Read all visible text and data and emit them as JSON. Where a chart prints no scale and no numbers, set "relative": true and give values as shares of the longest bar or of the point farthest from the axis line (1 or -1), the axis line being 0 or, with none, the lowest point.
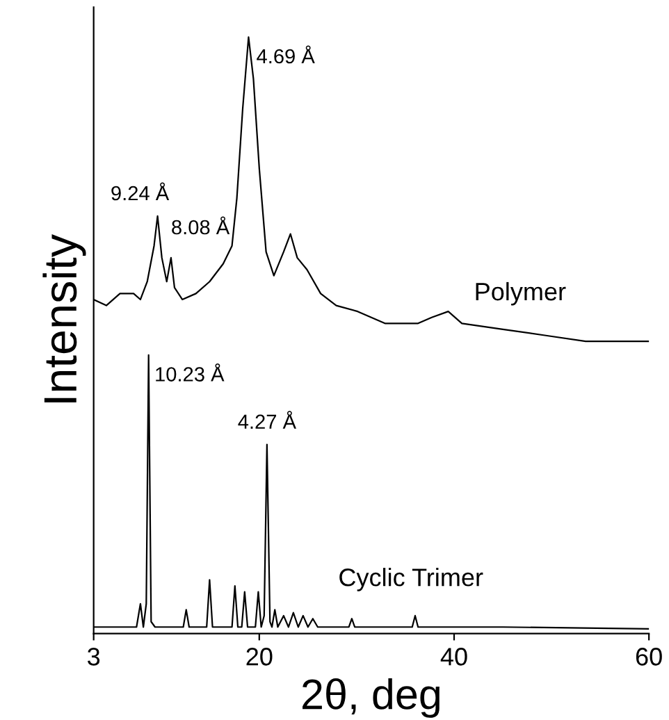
{
  "chart_data": {
    "type": "line",
    "relative": true,
    "xlabel": "2θ, deg",
    "ylabel": "Intensity",
    "xlim": [
      3,
      60
    ],
    "xticks": [
      3,
      20,
      40,
      60
    ],
    "grid": false,
    "legend": false,
    "marker": "none",
    "line_style": "solid",
    "series": [
      {
        "name": "Polymer",
        "color": "#000000",
        "x": [
          3,
          4.3,
          5.7,
          7.1,
          7.8,
          8.5,
          9.2,
          9.56,
          10.0,
          10.5,
          10.94,
          11.3,
          12.1,
          13.5,
          14.9,
          16.3,
          17.2,
          17.7,
          18.3,
          18.9,
          19.4,
          20.0,
          20.7,
          21.5,
          22.5,
          23.2,
          23.9,
          24.9,
          26.3,
          27.9,
          30.1,
          32.9,
          36.3,
          37.7,
          39.4,
          40.8,
          45.0,
          49.3,
          53.5,
          60
        ],
        "values": [
          0.56,
          0.55,
          0.57,
          0.57,
          0.56,
          0.59,
          0.65,
          0.7,
          0.63,
          0.59,
          0.63,
          0.58,
          0.56,
          0.57,
          0.59,
          0.62,
          0.65,
          0.73,
          0.88,
          1.0,
          0.93,
          0.78,
          0.64,
          0.6,
          0.64,
          0.67,
          0.63,
          0.61,
          0.57,
          0.55,
          0.54,
          0.52,
          0.52,
          0.53,
          0.54,
          0.52,
          0.51,
          0.5,
          0.49,
          0.49
        ]
      },
      {
        "name": "Cyclic Trimer",
        "color": "#000000",
        "x": [
          3,
          7.4,
          7.8,
          8.1,
          8.4,
          8.64,
          8.9,
          9.3,
          12.2,
          12.5,
          12.8,
          14.6,
          14.9,
          15.2,
          17.2,
          17.5,
          17.8,
          18.2,
          18.5,
          18.8,
          19.6,
          19.9,
          20.2,
          20.5,
          20.79,
          21.1,
          21.3,
          21.6,
          21.9,
          22.5,
          23.0,
          23.5,
          24.0,
          24.5,
          25.0,
          25.5,
          26.0,
          27.5,
          29.2,
          29.5,
          29.8,
          35.7,
          36.0,
          36.3,
          45,
          60
        ],
        "values": [
          0.011,
          0.011,
          0.05,
          0.011,
          0.05,
          0.467,
          0.02,
          0.011,
          0.011,
          0.04,
          0.011,
          0.011,
          0.09,
          0.011,
          0.011,
          0.08,
          0.011,
          0.011,
          0.07,
          0.011,
          0.011,
          0.07,
          0.011,
          0.03,
          0.317,
          0.02,
          0.011,
          0.04,
          0.011,
          0.03,
          0.011,
          0.035,
          0.011,
          0.03,
          0.011,
          0.025,
          0.011,
          0.011,
          0.011,
          0.025,
          0.011,
          0.011,
          0.03,
          0.011,
          0.011,
          0.008
        ]
      }
    ],
    "annotations": [
      {
        "text": "4.69 Å",
        "x": 18.9,
        "y": 1.0
      },
      {
        "text": "9.24 Å",
        "x": 9.56,
        "y": 0.7
      },
      {
        "text": "8.08 Å",
        "x": 10.94,
        "y": 0.63
      },
      {
        "text": "10.23 Å",
        "x": 8.64,
        "y": 0.467
      },
      {
        "text": "4.27 Å",
        "x": 20.79,
        "y": 0.317
      }
    ]
  }
}
